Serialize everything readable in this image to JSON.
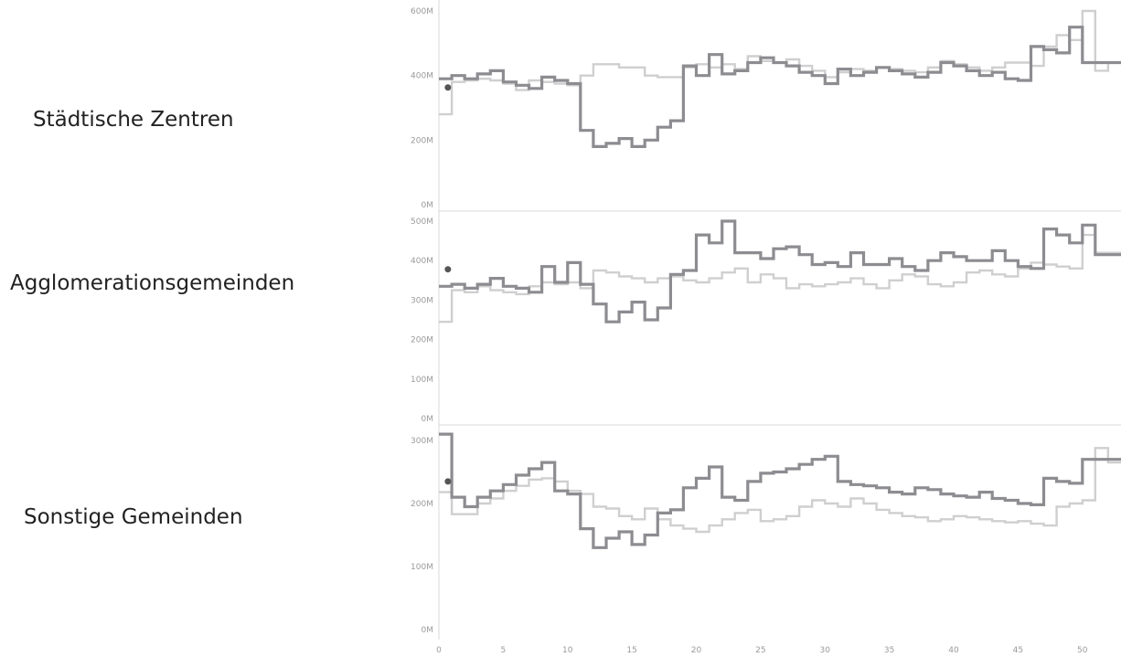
{
  "colors": {
    "series_dark": "#8c8c91",
    "series_light": "#cfcfcf",
    "marker": "#555555",
    "axis": "#d8d8d8"
  },
  "chart_data": {
    "type": "line",
    "line_shape": "step",
    "x_ticks": [
      0,
      5,
      10,
      15,
      20,
      25,
      30,
      35,
      40,
      45,
      50
    ],
    "xlim": [
      0,
      53
    ],
    "panels": [
      {
        "row_label": "Städtische Zentren",
        "ylim": [
          0,
          600
        ],
        "y_ticks": [
          {
            "value": 0,
            "label": "0M"
          },
          {
            "value": 200,
            "label": "200M"
          },
          {
            "value": 400,
            "label": "400M"
          },
          {
            "value": 600,
            "label": "600M"
          }
        ],
        "marker": {
          "x": 0.7,
          "y": 363
        },
        "series": [
          {
            "style": "light",
            "x": [
              0.5,
              1.5,
              2.5,
              3.5,
              4.5,
              5.5,
              6.5,
              7.5,
              8.5,
              9.5,
              10.5,
              11.5,
              12.5,
              13.5,
              14.5,
              15.5,
              16.5,
              17.5,
              18.5,
              19.5,
              20.5,
              21.5,
              22.5,
              23.5,
              24.5,
              25.5,
              26.5,
              27.5,
              28.5,
              29.5,
              30.5,
              31.5,
              32.5,
              33.5,
              34.5,
              35.5,
              36.5,
              37.5,
              38.5,
              39.5,
              40.5,
              41.5,
              42.5,
              43.5,
              44.5,
              45.5,
              46.5,
              47.5,
              48.5,
              49.5,
              50.5,
              51.5,
              52.5
            ],
            "values": [
              280,
              380,
              385,
              390,
              385,
              375,
              355,
              385,
              380,
              375,
              370,
              400,
              435,
              435,
              425,
              425,
              400,
              395,
              395,
              425,
              435,
              425,
              435,
              420,
              460,
              445,
              440,
              450,
              430,
              415,
              395,
              410,
              420,
              415,
              425,
              420,
              415,
              410,
              425,
              445,
              435,
              425,
              415,
              425,
              440,
              440,
              430,
              490,
              525,
              510,
              600,
              415,
              440
            ]
          },
          {
            "style": "dark",
            "x": [
              0.5,
              1.5,
              2.5,
              3.5,
              4.5,
              5.5,
              6.5,
              7.5,
              8.5,
              9.5,
              10.5,
              11.5,
              12.5,
              13.5,
              14.5,
              15.5,
              16.5,
              17.5,
              18.5,
              19.5,
              20.5,
              21.5,
              22.5,
              23.5,
              24.5,
              25.5,
              26.5,
              27.5,
              28.5,
              29.5,
              30.5,
              31.5,
              32.5,
              33.5,
              34.5,
              35.5,
              36.5,
              37.5,
              38.5,
              39.5,
              40.5,
              41.5,
              42.5,
              43.5,
              44.5,
              45.5,
              46.5,
              47.5,
              48.5,
              49.5,
              50.5,
              51.5,
              52.5
            ],
            "values": [
              390,
              400,
              390,
              405,
              415,
              380,
              370,
              360,
              395,
              385,
              375,
              230,
              180,
              190,
              205,
              180,
              200,
              240,
              260,
              430,
              400,
              465,
              405,
              415,
              440,
              455,
              440,
              430,
              410,
              400,
              375,
              420,
              400,
              410,
              425,
              415,
              405,
              395,
              410,
              440,
              430,
              415,
              400,
              410,
              390,
              385,
              490,
              480,
              470,
              550,
              440,
              440,
              440
            ]
          }
        ]
      },
      {
        "row_label": "Agglomerationsgemeinden",
        "ylim": [
          0,
          500
        ],
        "y_ticks": [
          {
            "value": 0,
            "label": "0M"
          },
          {
            "value": 100,
            "label": "100M"
          },
          {
            "value": 200,
            "label": "200M"
          },
          {
            "value": 300,
            "label": "300M"
          },
          {
            "value": 400,
            "label": "400M"
          },
          {
            "value": 500,
            "label": "500M"
          }
        ],
        "marker": {
          "x": 0.7,
          "y": 378
        },
        "series": [
          {
            "style": "light",
            "x": [
              0.5,
              1.5,
              2.5,
              3.5,
              4.5,
              5.5,
              6.5,
              7.5,
              8.5,
              9.5,
              10.5,
              11.5,
              12.5,
              13.5,
              14.5,
              15.5,
              16.5,
              17.5,
              18.5,
              19.5,
              20.5,
              21.5,
              22.5,
              23.5,
              24.5,
              25.5,
              26.5,
              27.5,
              28.5,
              29.5,
              30.5,
              31.5,
              32.5,
              33.5,
              34.5,
              35.5,
              36.5,
              37.5,
              38.5,
              39.5,
              40.5,
              41.5,
              42.5,
              43.5,
              44.5,
              45.5,
              46.5,
              47.5,
              48.5,
              49.5,
              50.5,
              51.5,
              52.5
            ],
            "values": [
              245,
              325,
              320,
              335,
              325,
              320,
              315,
              335,
              345,
              340,
              345,
              330,
              375,
              370,
              360,
              355,
              345,
              355,
              360,
              350,
              345,
              355,
              370,
              380,
              345,
              365,
              355,
              330,
              340,
              335,
              340,
              345,
              355,
              340,
              330,
              350,
              365,
              360,
              340,
              335,
              345,
              370,
              375,
              365,
              360,
              380,
              395,
              390,
              385,
              380,
              465,
              420,
              420
            ]
          },
          {
            "style": "dark",
            "x": [
              0.5,
              1.5,
              2.5,
              3.5,
              4.5,
              5.5,
              6.5,
              7.5,
              8.5,
              9.5,
              10.5,
              11.5,
              12.5,
              13.5,
              14.5,
              15.5,
              16.5,
              17.5,
              18.5,
              19.5,
              20.5,
              21.5,
              22.5,
              23.5,
              24.5,
              25.5,
              26.5,
              27.5,
              28.5,
              29.5,
              30.5,
              31.5,
              32.5,
              33.5,
              34.5,
              35.5,
              36.5,
              37.5,
              38.5,
              39.5,
              40.5,
              41.5,
              42.5,
              43.5,
              44.5,
              45.5,
              46.5,
              47.5,
              48.5,
              49.5,
              50.5,
              51.5,
              52.5
            ],
            "values": [
              335,
              340,
              330,
              340,
              355,
              335,
              330,
              320,
              385,
              345,
              395,
              340,
              290,
              245,
              270,
              295,
              250,
              280,
              365,
              375,
              465,
              445,
              500,
              420,
              420,
              405,
              430,
              435,
              415,
              390,
              395,
              385,
              420,
              390,
              390,
              405,
              385,
              375,
              400,
              420,
              410,
              400,
              400,
              425,
              400,
              385,
              380,
              480,
              465,
              445,
              490,
              415,
              415
            ]
          }
        ]
      },
      {
        "row_label": "Sonstige Gemeinden",
        "ylim": [
          0,
          300
        ],
        "y_ticks": [
          {
            "value": 0,
            "label": "0M"
          },
          {
            "value": 100,
            "label": "100M"
          },
          {
            "value": 200,
            "label": "200M"
          },
          {
            "value": 300,
            "label": "300M"
          }
        ],
        "marker": {
          "x": 0.7,
          "y": 235
        },
        "series": [
          {
            "style": "light",
            "x": [
              0.5,
              1.5,
              2.5,
              3.5,
              4.5,
              5.5,
              6.5,
              7.5,
              8.5,
              9.5,
              10.5,
              11.5,
              12.5,
              13.5,
              14.5,
              15.5,
              16.5,
              17.5,
              18.5,
              19.5,
              20.5,
              21.5,
              22.5,
              23.5,
              24.5,
              25.5,
              26.5,
              27.5,
              28.5,
              29.5,
              30.5,
              31.5,
              32.5,
              33.5,
              34.5,
              35.5,
              36.5,
              37.5,
              38.5,
              39.5,
              40.5,
              41.5,
              42.5,
              43.5,
              44.5,
              45.5,
              46.5,
              47.5,
              48.5,
              49.5,
              50.5,
              51.5,
              52.5
            ],
            "values": [
              218,
              183,
              183,
              200,
              208,
              220,
              228,
              238,
              240,
              235,
              220,
              215,
              195,
              192,
              180,
              175,
              192,
              175,
              165,
              160,
              155,
              165,
              175,
              185,
              190,
              172,
              175,
              180,
              195,
              205,
              200,
              195,
              208,
              200,
              190,
              185,
              180,
              178,
              172,
              175,
              180,
              178,
              175,
              172,
              170,
              172,
              168,
              165,
              195,
              200,
              205,
              288,
              265
            ]
          },
          {
            "style": "dark",
            "x": [
              0.5,
              1.5,
              2.5,
              3.5,
              4.5,
              5.5,
              6.5,
              7.5,
              8.5,
              9.5,
              10.5,
              11.5,
              12.5,
              13.5,
              14.5,
              15.5,
              16.5,
              17.5,
              18.5,
              19.5,
              20.5,
              21.5,
              22.5,
              23.5,
              24.5,
              25.5,
              26.5,
              27.5,
              28.5,
              29.5,
              30.5,
              31.5,
              32.5,
              33.5,
              34.5,
              35.5,
              36.5,
              37.5,
              38.5,
              39.5,
              40.5,
              41.5,
              42.5,
              43.5,
              44.5,
              45.5,
              46.5,
              47.5,
              48.5,
              49.5,
              50.5,
              51.5,
              52.5
            ],
            "values": [
              310,
              210,
              195,
              210,
              220,
              230,
              245,
              255,
              265,
              220,
              215,
              160,
              130,
              145,
              155,
              135,
              150,
              185,
              190,
              225,
              240,
              258,
              210,
              205,
              235,
              248,
              250,
              255,
              262,
              270,
              275,
              235,
              230,
              228,
              225,
              218,
              215,
              225,
              222,
              215,
              212,
              210,
              218,
              208,
              205,
              200,
              198,
              240,
              235,
              232,
              270,
              270,
              270
            ]
          }
        ]
      }
    ]
  }
}
